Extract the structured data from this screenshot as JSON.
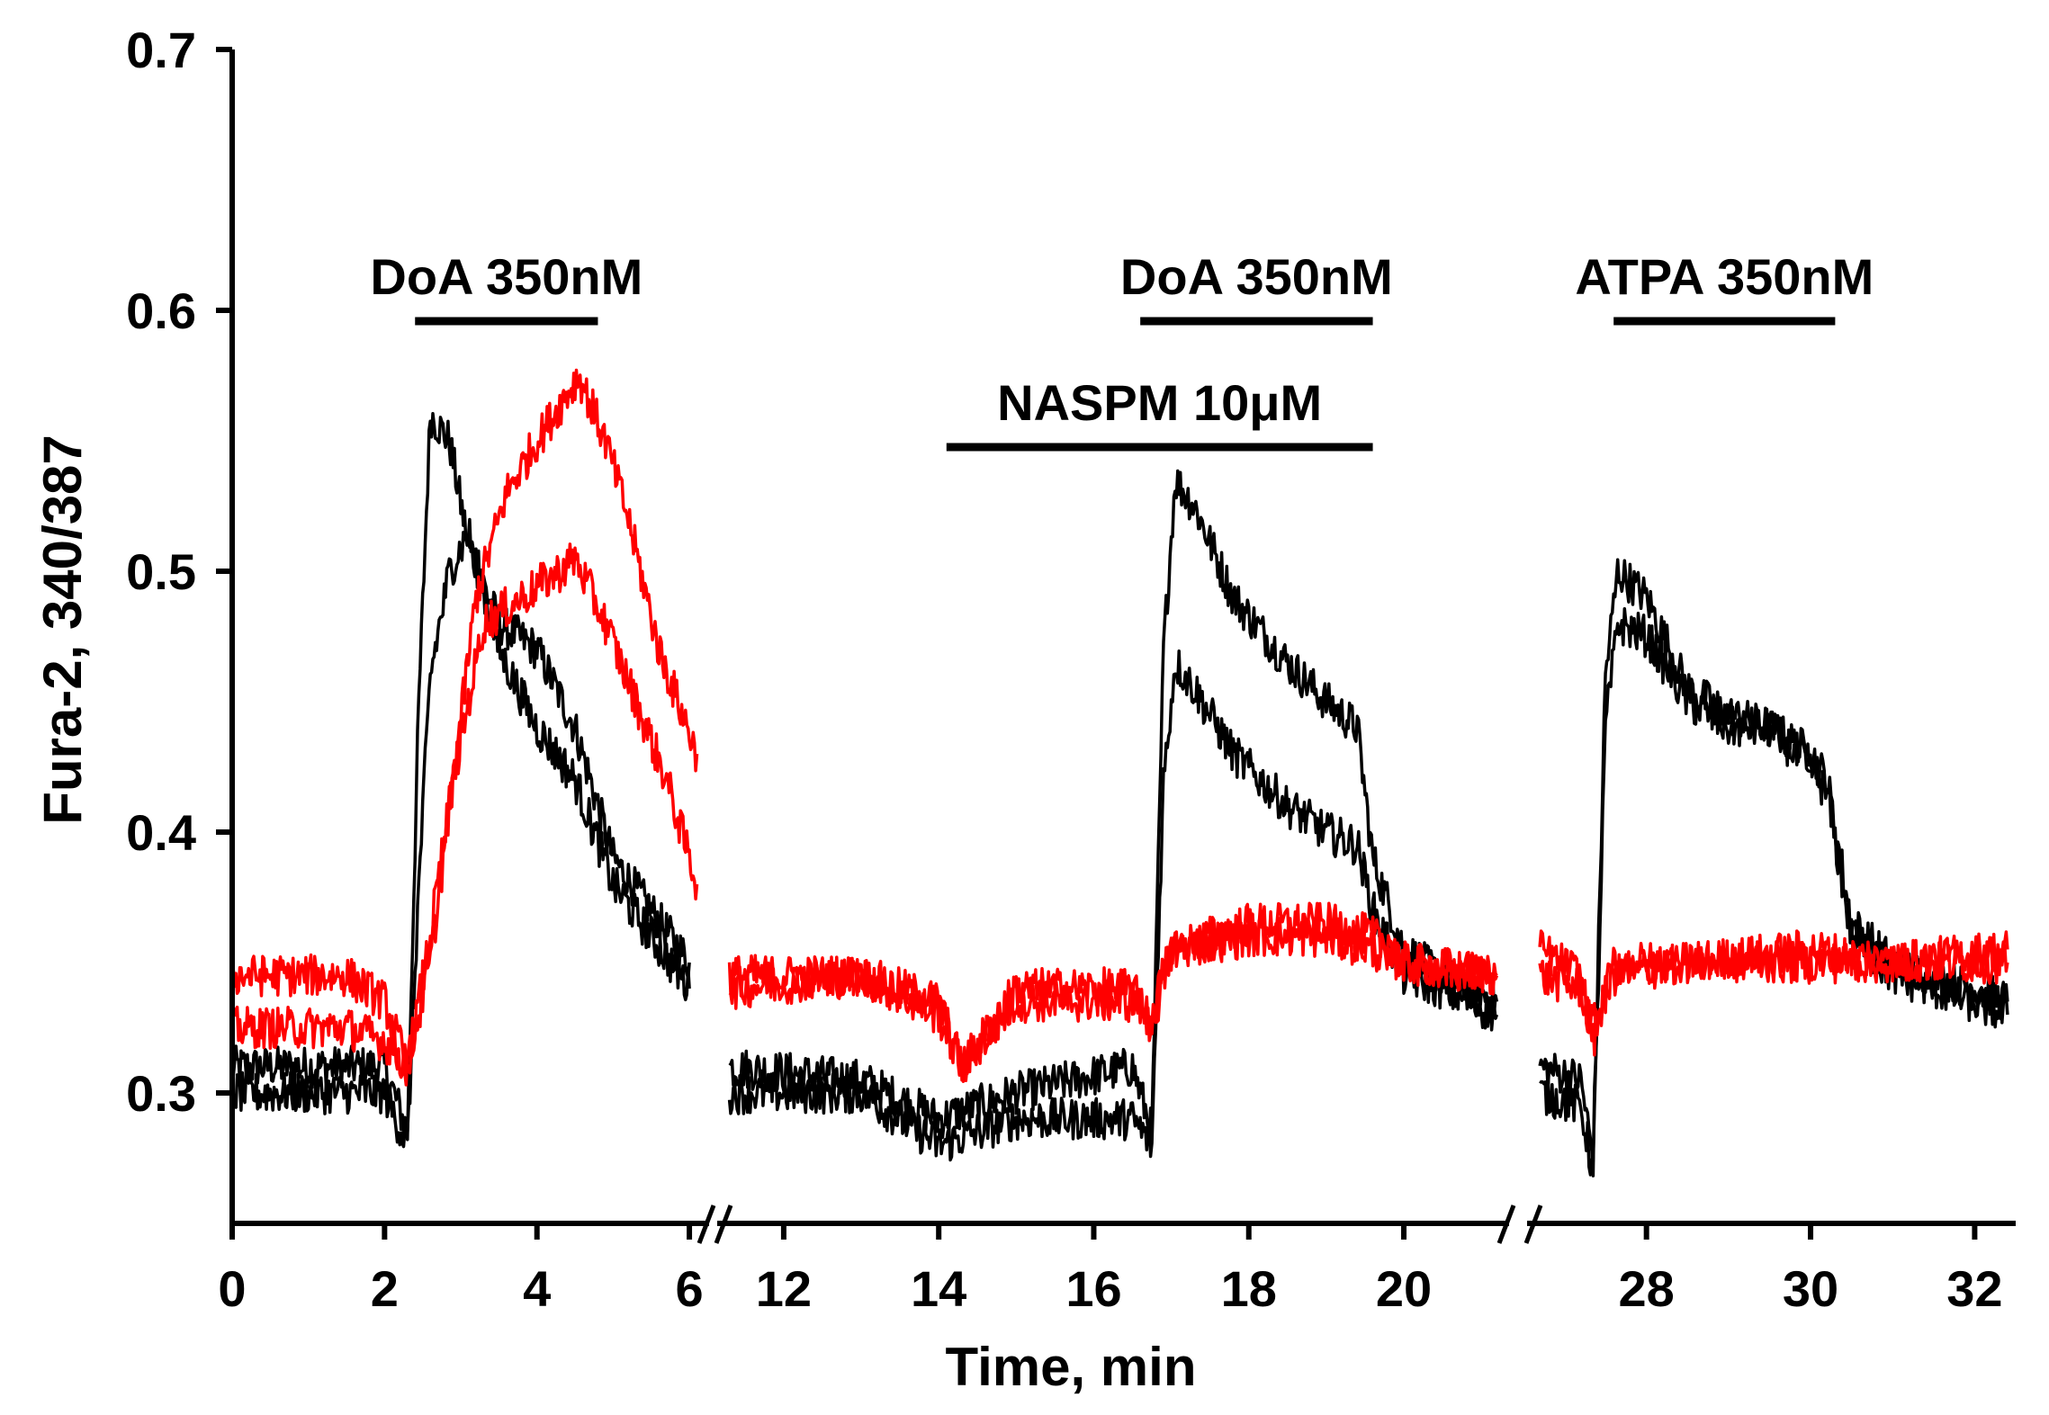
{
  "chart_data": {
    "type": "line",
    "title": "",
    "xlabel": "Time, min",
    "ylabel": "Fura-2, 340/387",
    "ylim": [
      0.25,
      0.7
    ],
    "yticks": [
      0.3,
      0.4,
      0.5,
      0.6,
      0.7
    ],
    "ytick_labels": [
      "0.3",
      "0.4",
      "0.5",
      "0.6",
      "0.7"
    ],
    "grid": false,
    "legend": null,
    "axis_breaks": [
      "between 6 and 12 min",
      "between 21 and 27 min"
    ],
    "segments": [
      {
        "name": "segment-1",
        "x_range": [
          0,
          6.2
        ],
        "ticks": [
          0,
          2,
          4,
          6
        ],
        "tick_labels": [
          "0",
          "2",
          "4",
          "6"
        ]
      },
      {
        "name": "segment-2",
        "x_range": [
          11.2,
          21.3
        ],
        "ticks": [
          12,
          14,
          16,
          18,
          20
        ],
        "tick_labels": [
          "12",
          "14",
          "16",
          "18",
          "20"
        ]
      },
      {
        "name": "segment-3",
        "x_range": [
          26.6,
          32.5
        ],
        "ticks": [
          28,
          30,
          32
        ],
        "tick_labels": [
          "28",
          "30",
          "32"
        ]
      }
    ],
    "annotations": [
      {
        "label": "DoA 350nM",
        "start": 2.4,
        "end": 4.8
      },
      {
        "label": "NASPM 10μM",
        "start": 14.1,
        "end": 19.6
      },
      {
        "label": "DoA 350nM",
        "start": 16.6,
        "end": 19.6
      },
      {
        "label": "ATPA 350nM",
        "start": 27.6,
        "end": 30.3
      }
    ],
    "series": [
      {
        "name": "Black trace 1",
        "color": "#000000",
        "points": [
          [
            0,
            0.31
          ],
          [
            2.0,
            0.31
          ],
          [
            2.3,
            0.285
          ],
          [
            2.45,
            0.45
          ],
          [
            2.6,
            0.56
          ],
          [
            2.85,
            0.55
          ],
          [
            3.1,
            0.51
          ],
          [
            3.5,
            0.48
          ],
          [
            4.0,
            0.47
          ],
          [
            4.5,
            0.44
          ],
          [
            5.0,
            0.39
          ],
          [
            5.5,
            0.37
          ],
          [
            6.0,
            0.35
          ],
          null,
          [
            11.3,
            0.31
          ],
          [
            13.0,
            0.305
          ],
          [
            14.0,
            0.29
          ],
          [
            15.0,
            0.3
          ],
          [
            16.5,
            0.31
          ],
          [
            16.75,
            0.285
          ],
          [
            16.9,
            0.47
          ],
          [
            17.05,
            0.535
          ],
          [
            17.3,
            0.525
          ],
          [
            17.8,
            0.49
          ],
          [
            18.5,
            0.465
          ],
          [
            19.0,
            0.45
          ],
          [
            19.4,
            0.44
          ],
          [
            19.6,
            0.39
          ],
          [
            20.0,
            0.355
          ],
          [
            20.5,
            0.345
          ],
          [
            21.2,
            0.335
          ],
          null,
          [
            26.7,
            0.31
          ],
          [
            27.2,
            0.305
          ],
          [
            27.35,
            0.275
          ],
          [
            27.5,
            0.46
          ],
          [
            27.65,
            0.5
          ],
          [
            28.0,
            0.49
          ],
          [
            28.5,
            0.455
          ],
          [
            29.0,
            0.445
          ],
          [
            29.5,
            0.44
          ],
          [
            30.0,
            0.43
          ],
          [
            30.2,
            0.42
          ],
          [
            30.5,
            0.365
          ],
          [
            31.0,
            0.35
          ],
          [
            31.5,
            0.345
          ],
          [
            32.4,
            0.335
          ]
        ]
      },
      {
        "name": "Black trace 2",
        "color": "#000000",
        "points": [
          [
            0,
            0.3
          ],
          [
            2.0,
            0.3
          ],
          [
            2.3,
            0.28
          ],
          [
            2.45,
            0.38
          ],
          [
            2.6,
            0.46
          ],
          [
            2.85,
            0.5
          ],
          [
            3.1,
            0.515
          ],
          [
            3.5,
            0.47
          ],
          [
            4.0,
            0.44
          ],
          [
            4.5,
            0.42
          ],
          [
            5.0,
            0.38
          ],
          [
            5.5,
            0.36
          ],
          [
            6.0,
            0.34
          ],
          null,
          [
            11.3,
            0.3
          ],
          [
            13.0,
            0.3
          ],
          [
            14.0,
            0.28
          ],
          [
            15.0,
            0.29
          ],
          [
            16.5,
            0.29
          ],
          [
            16.75,
            0.28
          ],
          [
            16.9,
            0.42
          ],
          [
            17.05,
            0.465
          ],
          [
            17.3,
            0.455
          ],
          [
            17.8,
            0.43
          ],
          [
            18.5,
            0.41
          ],
          [
            19.0,
            0.4
          ],
          [
            19.4,
            0.395
          ],
          [
            19.6,
            0.37
          ],
          [
            20.0,
            0.345
          ],
          [
            20.5,
            0.34
          ],
          [
            21.2,
            0.33
          ],
          null,
          [
            26.7,
            0.3
          ],
          [
            27.2,
            0.295
          ],
          [
            27.35,
            0.27
          ],
          [
            27.5,
            0.44
          ],
          [
            27.65,
            0.48
          ],
          [
            28.0,
            0.475
          ],
          [
            28.5,
            0.45
          ],
          [
            29.0,
            0.44
          ],
          [
            29.5,
            0.44
          ],
          [
            30.0,
            0.425
          ],
          [
            30.2,
            0.415
          ],
          [
            30.5,
            0.36
          ],
          [
            31.0,
            0.345
          ],
          [
            31.5,
            0.34
          ],
          [
            32.4,
            0.33
          ]
        ]
      },
      {
        "name": "Red trace 1",
        "color": "#ff0000",
        "points": [
          [
            0,
            0.345
          ],
          [
            1.5,
            0.345
          ],
          [
            2.0,
            0.335
          ],
          [
            2.3,
            0.31
          ],
          [
            2.6,
            0.36
          ],
          [
            2.9,
            0.42
          ],
          [
            3.2,
            0.49
          ],
          [
            3.6,
            0.53
          ],
          [
            4.0,
            0.55
          ],
          [
            4.55,
            0.575
          ],
          [
            4.9,
            0.55
          ],
          [
            5.2,
            0.52
          ],
          [
            5.6,
            0.47
          ],
          [
            6.1,
            0.43
          ],
          null,
          [
            11.3,
            0.345
          ],
          [
            13.0,
            0.345
          ],
          [
            14.0,
            0.335
          ],
          [
            14.3,
            0.31
          ],
          [
            15.0,
            0.335
          ],
          [
            16.5,
            0.335
          ],
          [
            16.75,
            0.33
          ],
          [
            17.0,
            0.355
          ],
          [
            18.0,
            0.365
          ],
          [
            19.0,
            0.365
          ],
          [
            19.6,
            0.36
          ],
          [
            20.0,
            0.35
          ],
          [
            21.2,
            0.345
          ],
          null,
          [
            26.7,
            0.345
          ],
          [
            27.2,
            0.34
          ],
          [
            27.35,
            0.325
          ],
          [
            27.6,
            0.345
          ],
          [
            28.5,
            0.35
          ],
          [
            30.0,
            0.355
          ],
          [
            31.0,
            0.35
          ],
          [
            32.4,
            0.35
          ]
        ]
      },
      {
        "name": "Red trace 2",
        "color": "#ff0000",
        "points": [
          [
            0,
            0.325
          ],
          [
            1.5,
            0.325
          ],
          [
            2.0,
            0.32
          ],
          [
            2.3,
            0.31
          ],
          [
            2.6,
            0.35
          ],
          [
            2.9,
            0.42
          ],
          [
            3.3,
            0.48
          ],
          [
            3.8,
            0.49
          ],
          [
            4.3,
            0.5
          ],
          [
            4.5,
            0.505
          ],
          [
            4.9,
            0.48
          ],
          [
            5.3,
            0.45
          ],
          [
            5.7,
            0.42
          ],
          [
            6.1,
            0.38
          ],
          null,
          [
            11.3,
            0.34
          ],
          [
            13.0,
            0.345
          ],
          [
            14.0,
            0.33
          ],
          [
            14.3,
            0.31
          ],
          [
            15.0,
            0.34
          ],
          [
            16.5,
            0.34
          ],
          [
            16.75,
            0.325
          ],
          [
            17.0,
            0.355
          ],
          [
            18.0,
            0.36
          ],
          [
            19.0,
            0.36
          ],
          [
            19.6,
            0.355
          ],
          [
            20.0,
            0.35
          ],
          [
            21.2,
            0.345
          ],
          null,
          [
            26.7,
            0.355
          ],
          [
            27.2,
            0.345
          ],
          [
            27.35,
            0.32
          ],
          [
            27.6,
            0.35
          ],
          [
            28.5,
            0.35
          ],
          [
            30.0,
            0.35
          ],
          [
            31.0,
            0.35
          ],
          [
            32.4,
            0.355
          ]
        ]
      }
    ]
  }
}
